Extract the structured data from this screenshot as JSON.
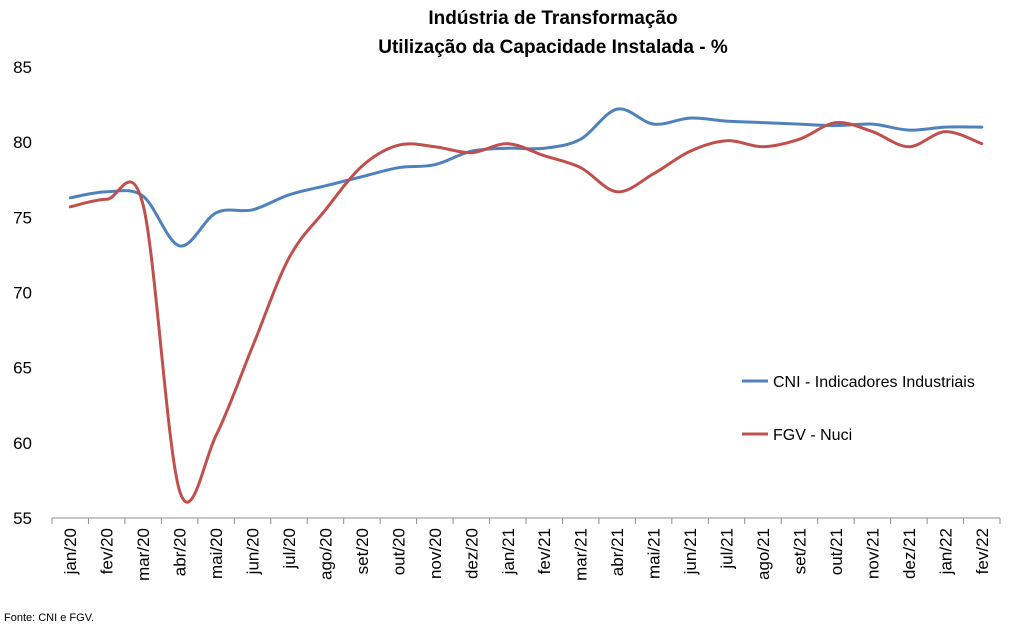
{
  "chart_data": {
    "type": "line",
    "title": "Indústria de Transformação",
    "subtitle": "Utilização da Capacidade Instalada - %",
    "categories": [
      "jan/20",
      "fev/20",
      "mar/20",
      "abr/20",
      "mai/20",
      "jun/20",
      "jul/20",
      "ago/20",
      "set/20",
      "out/20",
      "nov/20",
      "dez/20",
      "jan/21",
      "fev/21",
      "mar/21",
      "abr/21",
      "mai/21",
      "jun/21",
      "jul/21",
      "ago/21",
      "set/21",
      "out/21",
      "nov/21",
      "dez/21",
      "jan/22",
      "fev/22"
    ],
    "yticks": [
      "55",
      "60",
      "65",
      "70",
      "75",
      "80",
      "85"
    ],
    "ylim": [
      55,
      85
    ],
    "grid": false,
    "legend_position": "right",
    "series": [
      {
        "name": "CNI - Indicadores Industriais",
        "color": "#4f81bd",
        "values": [
          76.3,
          76.7,
          76.4,
          73.1,
          75.3,
          75.5,
          76.5,
          77.1,
          77.7,
          78.3,
          78.5,
          79.4,
          79.6,
          79.6,
          80.2,
          82.2,
          81.2,
          81.6,
          81.4,
          81.3,
          81.2,
          81.1,
          81.2,
          80.8,
          81.0,
          81.0
        ]
      },
      {
        "name": "FGV - Nuci",
        "color": "#c0504d",
        "values": [
          75.7,
          76.2,
          75.8,
          56.8,
          60.5,
          66.4,
          72.3,
          75.5,
          78.4,
          79.8,
          79.7,
          79.3,
          79.9,
          79.1,
          78.3,
          76.7,
          77.9,
          79.4,
          80.1,
          79.7,
          80.2,
          81.3,
          80.7,
          79.7,
          80.7,
          79.9
        ]
      }
    ]
  },
  "source_note": "Fonte: CNI e FGV."
}
